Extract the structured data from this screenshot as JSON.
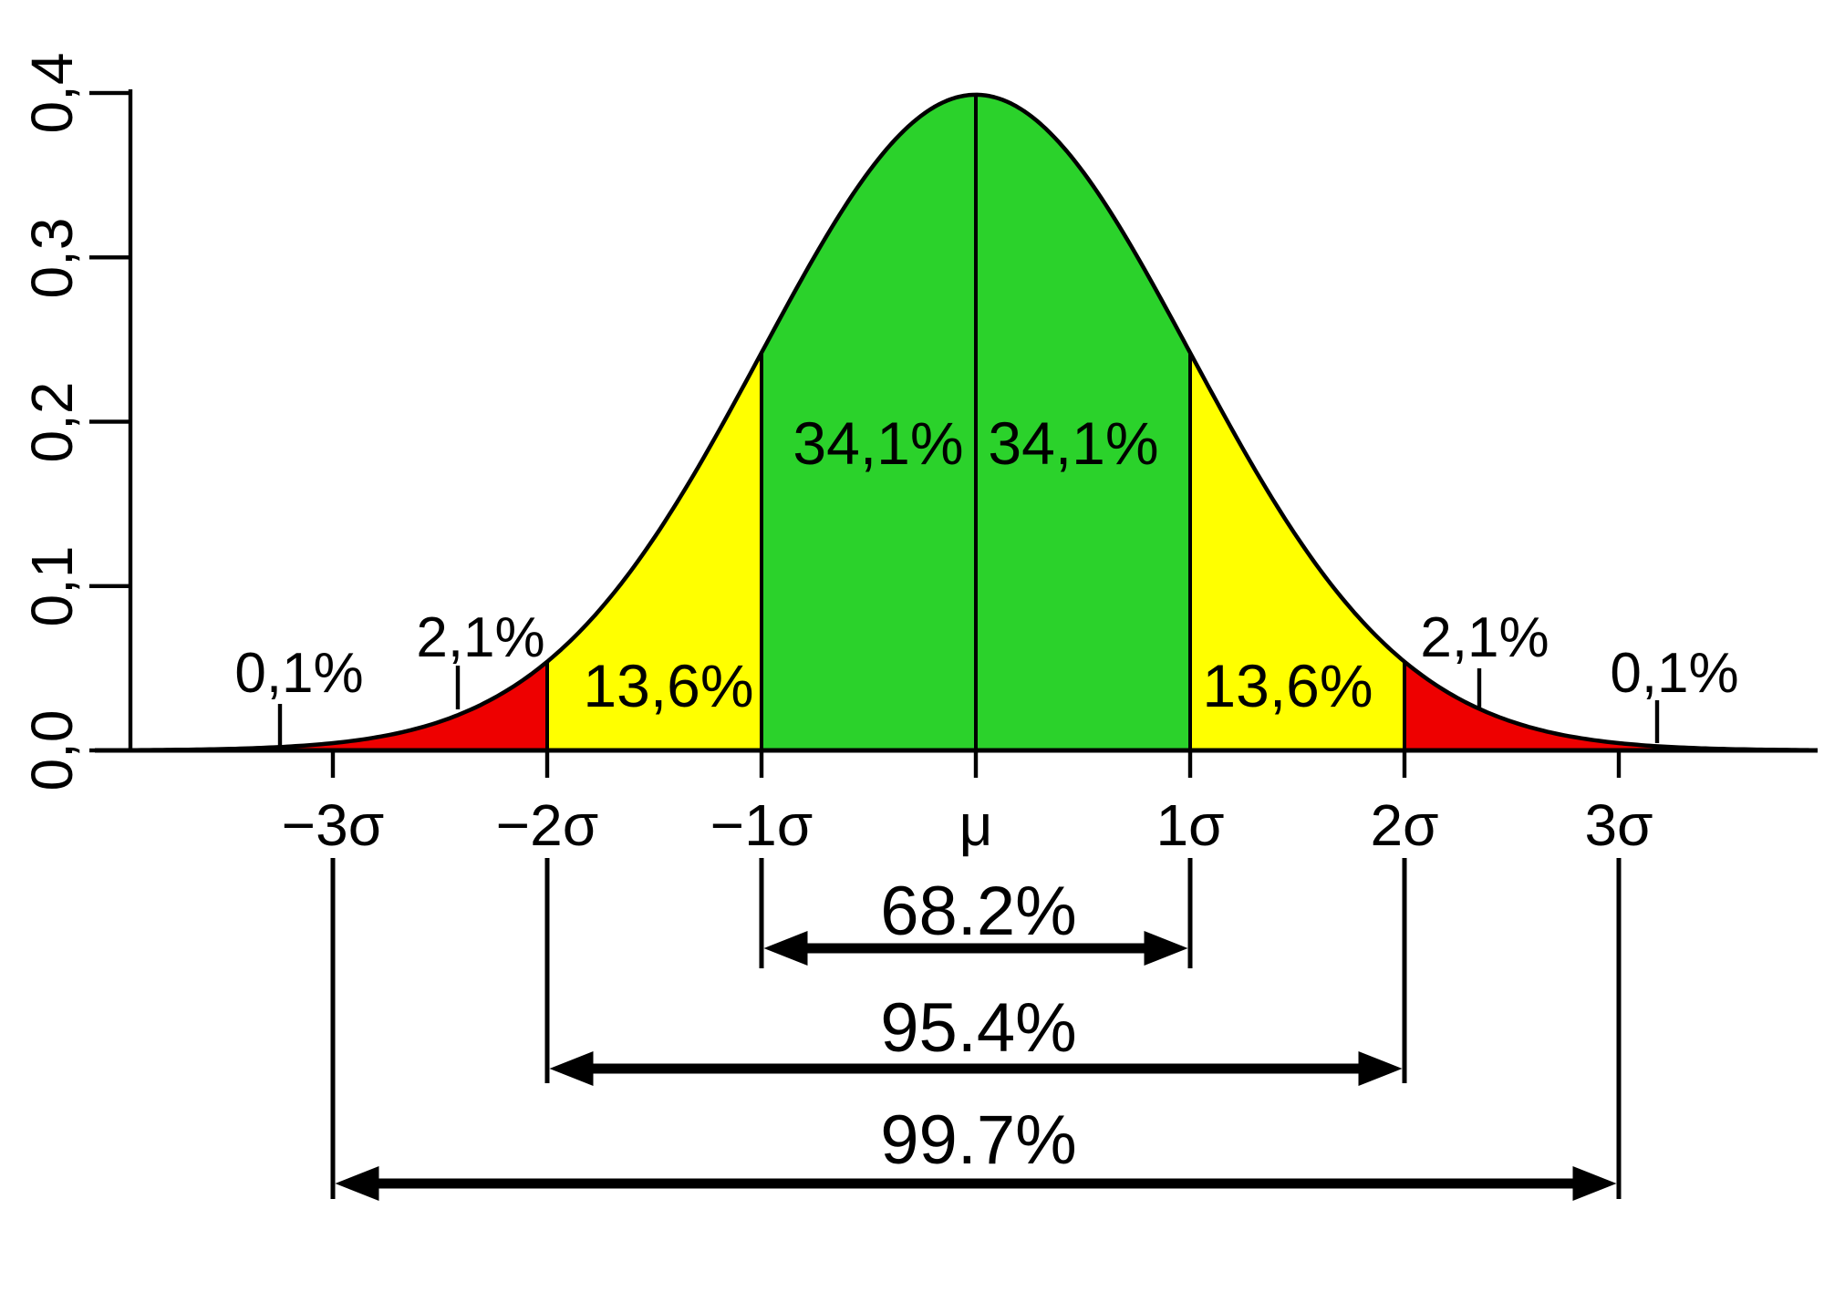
{
  "chart_data": {
    "type": "area",
    "distribution": "normal",
    "title": "",
    "x_axis": {
      "tick_labels": [
        "−3σ",
        "−2σ",
        "−1σ",
        "μ",
        "1σ",
        "2σ",
        "3σ"
      ],
      "tick_values_sigma": [
        -3,
        -2,
        -1,
        0,
        1,
        2,
        3
      ]
    },
    "y_axis": {
      "tick_labels": [
        "0,0",
        "0,1",
        "0,2",
        "0,3",
        "0,4"
      ],
      "tick_values": [
        0,
        0.1,
        0.2,
        0.3,
        0.4
      ],
      "range": [
        0,
        0.4
      ]
    },
    "curve": {
      "peak_density": 0.3989,
      "color": "#000000"
    },
    "colors": {
      "center_band": "#2bd22b",
      "middle_band": "#ffff00",
      "outer_band": "#ee0000",
      "background": "#ffffff"
    },
    "fill_segments": [
      {
        "name": "red-left-tail",
        "from_sigma": -9,
        "to_sigma": -2,
        "color": "#ee0000"
      },
      {
        "name": "yellow-left",
        "from_sigma": -2,
        "to_sigma": -1,
        "color": "#ffff00"
      },
      {
        "name": "green-center",
        "from_sigma": -1,
        "to_sigma": 1,
        "color": "#2bd22b"
      },
      {
        "name": "yellow-right",
        "from_sigma": 1,
        "to_sigma": 2,
        "color": "#ffff00"
      },
      {
        "name": "red-right-tail",
        "from_sigma": 2,
        "to_sigma": 9,
        "color": "#ee0000"
      }
    ],
    "area_labels": [
      {
        "text": "0,1%",
        "from_sigma": null,
        "to_sigma": -3
      },
      {
        "text": "2,1%",
        "from_sigma": -3,
        "to_sigma": -2
      },
      {
        "text": "13,6%",
        "from_sigma": -2,
        "to_sigma": -1
      },
      {
        "text": "34,1%",
        "from_sigma": -1,
        "to_sigma": 0
      },
      {
        "text": "34,1%",
        "from_sigma": 0,
        "to_sigma": 1
      },
      {
        "text": "13,6%",
        "from_sigma": 1,
        "to_sigma": 2
      },
      {
        "text": "2,1%",
        "from_sigma": 2,
        "to_sigma": 3
      },
      {
        "text": "0,1%",
        "from_sigma": 3,
        "to_sigma": null
      }
    ],
    "range_arrows": [
      {
        "label": "68.2%",
        "from_sigma": -1,
        "to_sigma": 1
      },
      {
        "label": "95.4%",
        "from_sigma": -2,
        "to_sigma": 2
      },
      {
        "label": "99.7%",
        "from_sigma": -3,
        "to_sigma": 3
      }
    ]
  }
}
